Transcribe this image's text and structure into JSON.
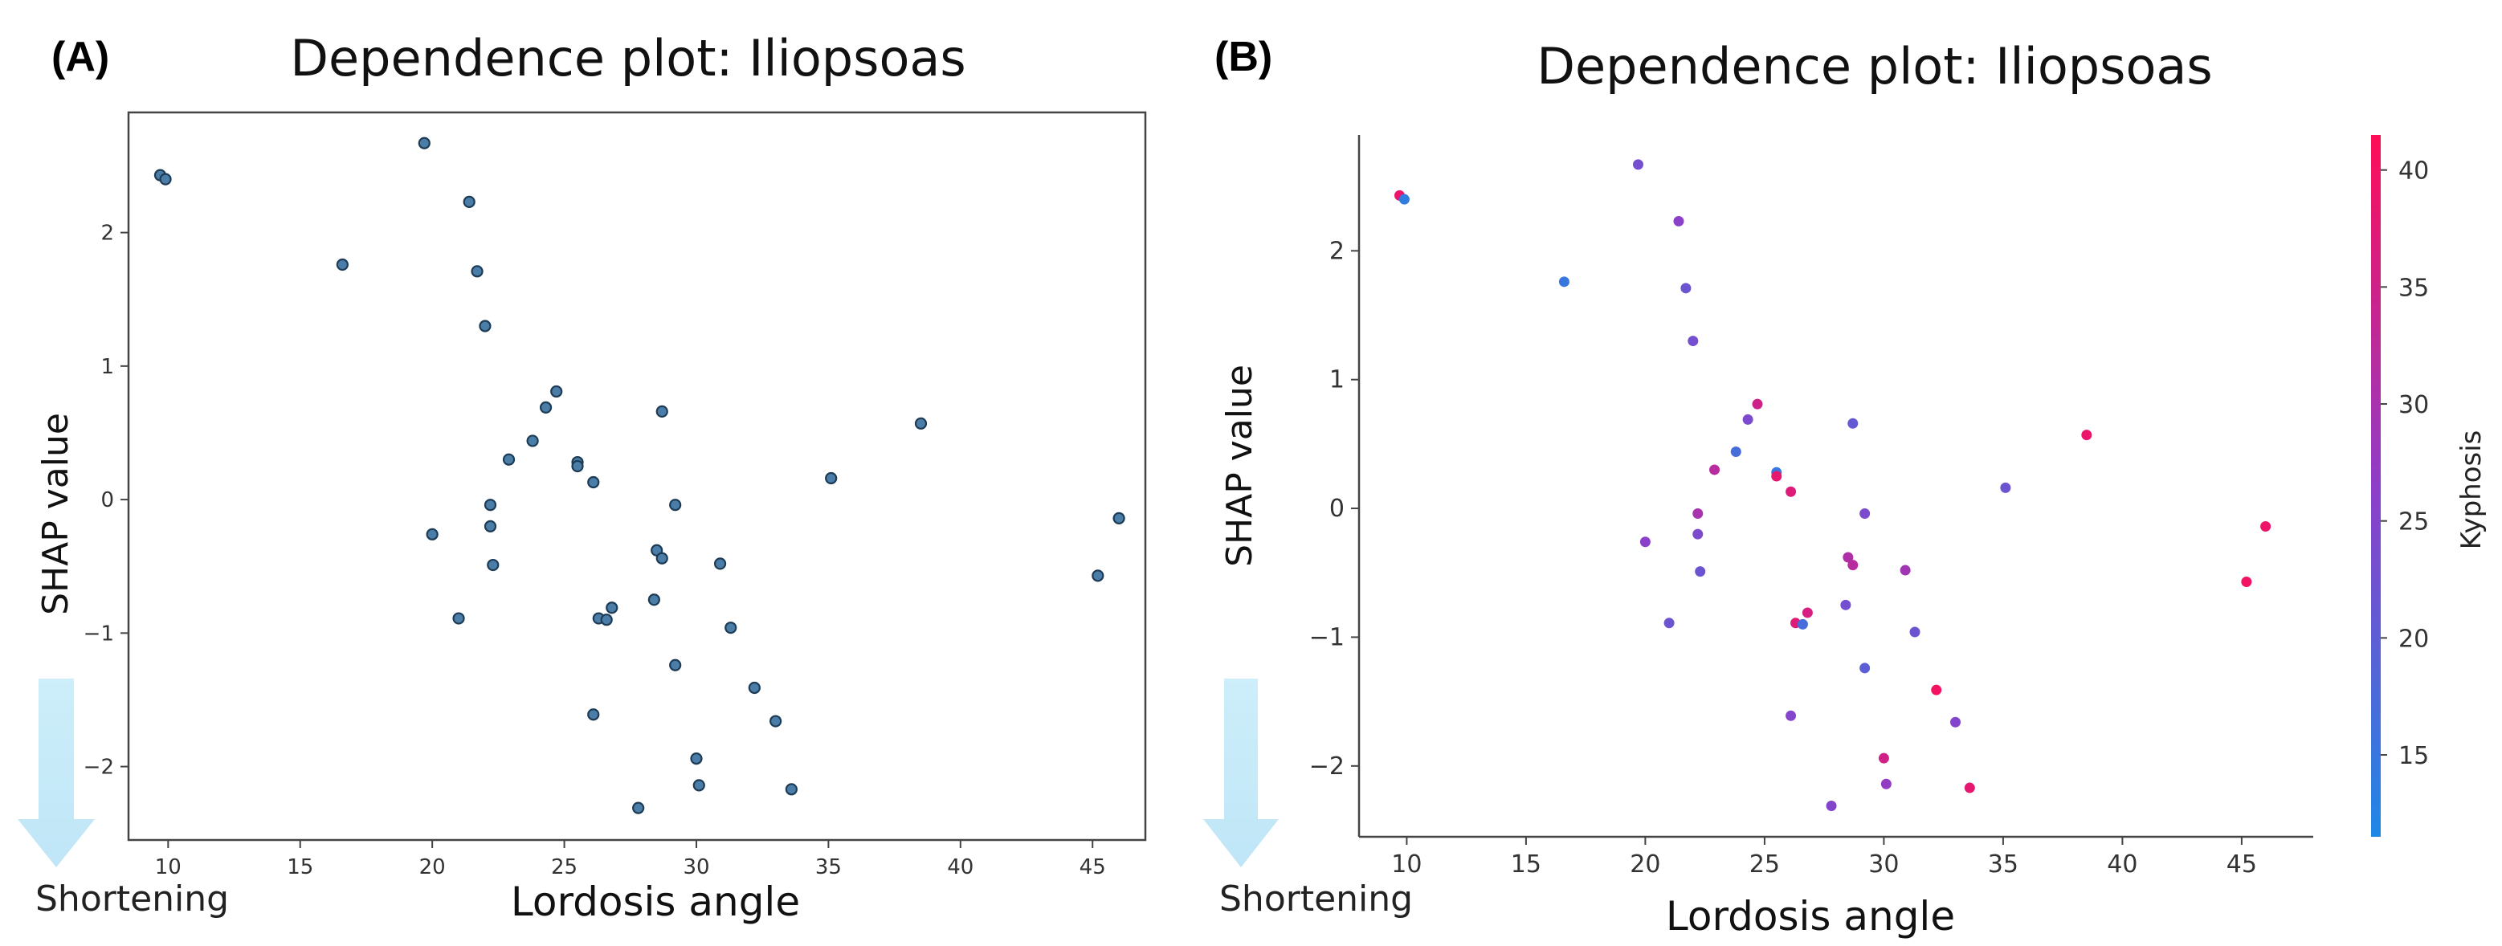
{
  "chart_data": [
    {
      "panel": "(A)",
      "type": "scatter",
      "title": "Dependence plot: Iliopsoas",
      "xlabel": "Lordosis angle",
      "ylabel": "SHAP value",
      "annotation": "Shortening",
      "xlim": [
        8.5,
        47
      ],
      "ylim": [
        -2.55,
        2.9
      ],
      "xticks": [
        10,
        15,
        20,
        25,
        30,
        35,
        40,
        45
      ],
      "yticks": [
        -2,
        -1,
        0,
        1,
        2
      ],
      "marker_color": "#4a7ea8",
      "marker_edge": "#1d3b55",
      "points": [
        {
          "x": 9.7,
          "y": 2.43
        },
        {
          "x": 9.9,
          "y": 2.4
        },
        {
          "x": 16.6,
          "y": 1.76
        },
        {
          "x": 19.7,
          "y": 2.67
        },
        {
          "x": 20.0,
          "y": -0.26
        },
        {
          "x": 21.0,
          "y": -0.89
        },
        {
          "x": 21.4,
          "y": 2.23
        },
        {
          "x": 21.7,
          "y": 1.71
        },
        {
          "x": 22.0,
          "y": 1.3
        },
        {
          "x": 22.2,
          "y": -0.04
        },
        {
          "x": 22.2,
          "y": -0.2
        },
        {
          "x": 22.3,
          "y": -0.49
        },
        {
          "x": 22.9,
          "y": 0.3
        },
        {
          "x": 23.8,
          "y": 0.44
        },
        {
          "x": 24.3,
          "y": 0.69
        },
        {
          "x": 24.7,
          "y": 0.81
        },
        {
          "x": 25.5,
          "y": 0.28
        },
        {
          "x": 25.5,
          "y": 0.25
        },
        {
          "x": 26.1,
          "y": 0.13
        },
        {
          "x": 26.1,
          "y": -1.61
        },
        {
          "x": 26.3,
          "y": -0.89
        },
        {
          "x": 26.6,
          "y": -0.9
        },
        {
          "x": 26.8,
          "y": -0.81
        },
        {
          "x": 27.8,
          "y": -2.31
        },
        {
          "x": 28.4,
          "y": -0.75
        },
        {
          "x": 28.5,
          "y": -0.38
        },
        {
          "x": 28.7,
          "y": -0.44
        },
        {
          "x": 28.7,
          "y": 0.66
        },
        {
          "x": 29.2,
          "y": -0.04
        },
        {
          "x": 29.2,
          "y": -1.24
        },
        {
          "x": 30.0,
          "y": -1.94
        },
        {
          "x": 30.1,
          "y": -2.14
        },
        {
          "x": 30.9,
          "y": -0.48
        },
        {
          "x": 31.3,
          "y": -0.96
        },
        {
          "x": 32.2,
          "y": -1.41
        },
        {
          "x": 33.0,
          "y": -1.66
        },
        {
          "x": 33.6,
          "y": -2.17
        },
        {
          "x": 35.1,
          "y": 0.16
        },
        {
          "x": 38.5,
          "y": 0.57
        },
        {
          "x": 45.2,
          "y": -0.57
        },
        {
          "x": 46.0,
          "y": -0.14
        }
      ]
    },
    {
      "panel": "(B)",
      "type": "scatter",
      "title": "Dependence plot: Iliopsoas",
      "xlabel": "Lordosis angle",
      "ylabel": "SHAP value",
      "annotation": "Shortening",
      "colorbar_label": "Kyphosis",
      "colorbar_range": [
        11.5,
        41.5
      ],
      "colorbar_ticks": [
        15,
        20,
        25,
        30,
        35,
        40
      ],
      "colormap": [
        "#1E88E5",
        "#8E3EC8",
        "#FF0D57"
      ],
      "xlim": [
        8.0,
        48.0
      ],
      "ylim": [
        -2.55,
        2.9
      ],
      "xticks": [
        10,
        15,
        20,
        25,
        30,
        35,
        40,
        45
      ],
      "yticks": [
        -2,
        -1,
        0,
        1,
        2
      ],
      "points": [
        {
          "x": 9.7,
          "y": 2.43,
          "c": 39
        },
        {
          "x": 9.9,
          "y": 2.4,
          "c": 14
        },
        {
          "x": 16.6,
          "y": 1.76,
          "c": 15
        },
        {
          "x": 19.7,
          "y": 2.67,
          "c": 23
        },
        {
          "x": 20.0,
          "y": -0.26,
          "c": 26
        },
        {
          "x": 21.0,
          "y": -0.89,
          "c": 22
        },
        {
          "x": 21.4,
          "y": 2.23,
          "c": 26
        },
        {
          "x": 21.7,
          "y": 1.71,
          "c": 22
        },
        {
          "x": 22.0,
          "y": 1.3,
          "c": 23
        },
        {
          "x": 22.2,
          "y": -0.04,
          "c": 30
        },
        {
          "x": 22.2,
          "y": -0.2,
          "c": 24
        },
        {
          "x": 22.3,
          "y": -0.49,
          "c": 22
        },
        {
          "x": 22.9,
          "y": 0.3,
          "c": 32
        },
        {
          "x": 23.8,
          "y": 0.44,
          "c": 17
        },
        {
          "x": 24.3,
          "y": 0.69,
          "c": 24
        },
        {
          "x": 24.7,
          "y": 0.81,
          "c": 35
        },
        {
          "x": 25.5,
          "y": 0.28,
          "c": 15
        },
        {
          "x": 25.5,
          "y": 0.25,
          "c": 38
        },
        {
          "x": 26.1,
          "y": 0.13,
          "c": 37
        },
        {
          "x": 26.1,
          "y": -1.61,
          "c": 25
        },
        {
          "x": 26.3,
          "y": -0.89,
          "c": 37
        },
        {
          "x": 26.6,
          "y": -0.9,
          "c": 17
        },
        {
          "x": 26.8,
          "y": -0.81,
          "c": 36
        },
        {
          "x": 27.8,
          "y": -2.31,
          "c": 25
        },
        {
          "x": 28.4,
          "y": -0.75,
          "c": 23
        },
        {
          "x": 28.5,
          "y": -0.38,
          "c": 31
        },
        {
          "x": 28.7,
          "y": -0.44,
          "c": 32
        },
        {
          "x": 28.7,
          "y": 0.66,
          "c": 21
        },
        {
          "x": 29.2,
          "y": -0.04,
          "c": 24
        },
        {
          "x": 29.2,
          "y": -1.24,
          "c": 20
        },
        {
          "x": 30.0,
          "y": -1.94,
          "c": 35
        },
        {
          "x": 30.1,
          "y": -2.14,
          "c": 27
        },
        {
          "x": 30.9,
          "y": -0.48,
          "c": 29
        },
        {
          "x": 31.3,
          "y": -0.96,
          "c": 22
        },
        {
          "x": 32.2,
          "y": -1.41,
          "c": 40
        },
        {
          "x": 33.0,
          "y": -1.66,
          "c": 25
        },
        {
          "x": 33.6,
          "y": -2.17,
          "c": 38
        },
        {
          "x": 35.1,
          "y": 0.16,
          "c": 22
        },
        {
          "x": 38.5,
          "y": 0.57,
          "c": 39
        },
        {
          "x": 45.2,
          "y": -0.57,
          "c": 40
        },
        {
          "x": 46.0,
          "y": -0.14,
          "c": 39
        }
      ]
    }
  ]
}
